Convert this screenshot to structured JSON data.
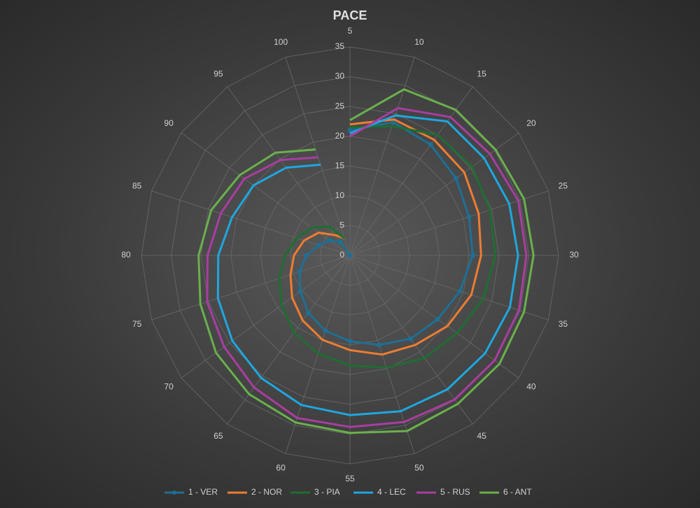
{
  "chart_data": {
    "type": "radar",
    "title": "PACE",
    "categories": [
      "5",
      "10",
      "15",
      "20",
      "25",
      "30",
      "35",
      "40",
      "45",
      "50",
      "55",
      "60",
      "65",
      "70",
      "75",
      "80",
      "85",
      "90",
      "95",
      "100"
    ],
    "ylim": [
      0,
      35
    ],
    "yticks": [
      0,
      5,
      10,
      15,
      20,
      25,
      30,
      35
    ],
    "grid": true,
    "legend": "bottom",
    "series": [
      {
        "name": "1 - VER",
        "color": "#1f6f94",
        "markers": true,
        "values": [
          21,
          23.5,
          23,
          22,
          21,
          20.6,
          19.4,
          18.2,
          17.3,
          15.8,
          14.4,
          13.3,
          11.9,
          10.3,
          8.9,
          7.3,
          5.5,
          4.3,
          2.8,
          0
        ]
      },
      {
        "name": "2 - NOR",
        "color": "#ed7d31",
        "values": [
          22,
          24,
          24,
          23.7,
          22.7,
          22,
          21.4,
          20.2,
          18.6,
          17.5,
          15.9,
          14.9,
          13.5,
          12,
          10.5,
          9.4,
          8.1,
          6.5,
          4.2,
          3
        ]
      },
      {
        "name": "3 - PIA",
        "color": "#1e6e32",
        "values": [
          21.5,
          22.8,
          25,
          25.3,
          24.7,
          24.4,
          23.5,
          22.2,
          21.3,
          19.8,
          18.5,
          17.3,
          16,
          14.2,
          12.5,
          10.9,
          9.4,
          7.9,
          6,
          3
        ]
      },
      {
        "name": "4 - LEC",
        "color": "#1ea7e0",
        "values": [
          20.5,
          24.7,
          27.8,
          27.8,
          28.1,
          28.2,
          28.2,
          28,
          27.8,
          27.5,
          26.8,
          26.4,
          25.4,
          24.4,
          23.3,
          22.1,
          20.8,
          20,
          18.2,
          16
        ]
      },
      {
        "name": "5 - RUS",
        "color": "#a83ea0",
        "values": [
          20,
          26,
          28.7,
          29,
          29.7,
          29.6,
          29.8,
          30,
          29.9,
          29.4,
          28.8,
          28.7,
          27.4,
          26.1,
          25.2,
          23.9,
          22.8,
          21.9,
          19.8,
          17.3
        ]
      },
      {
        "name": "6 - ANT",
        "color": "#6ab04c",
        "values": [
          22.7,
          29.3,
          30.2,
          30.2,
          30.7,
          30.8,
          30.7,
          31,
          30.8,
          31,
          29.8,
          29.5,
          28.8,
          27.8,
          26.4,
          25.4,
          24.5,
          22.9,
          21.3,
          18.7
        ]
      }
    ]
  }
}
